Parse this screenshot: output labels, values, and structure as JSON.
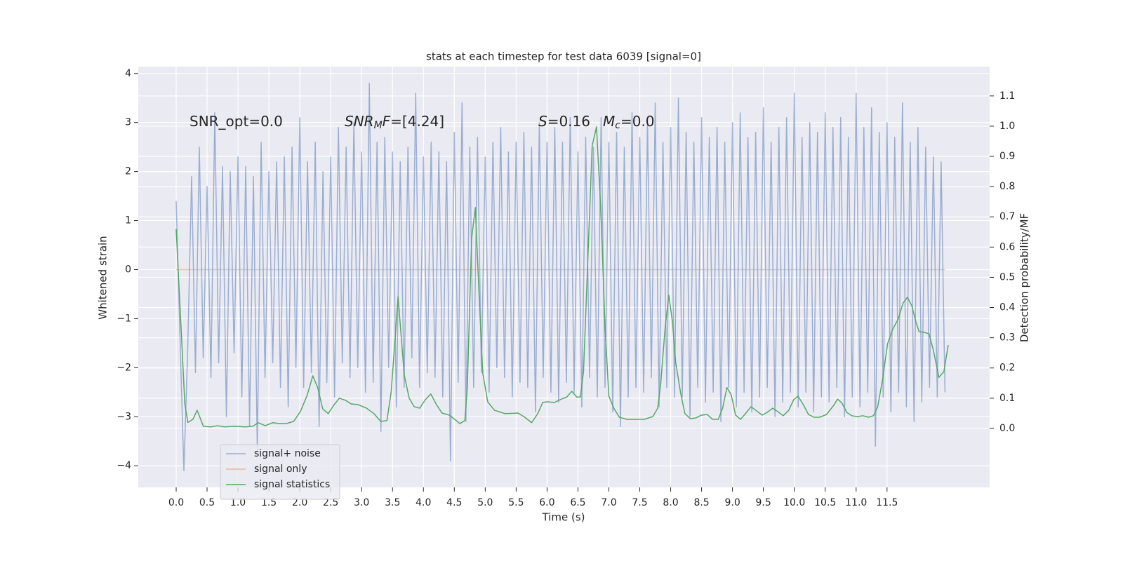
{
  "chart_data": {
    "type": "line",
    "title": "stats at each timestep for test data 6039 [signal=0]",
    "xlabel": "Time (s)",
    "ylabel": "Whitened strain",
    "y2label": "Detection probability/MF",
    "xlim": [
      -0.613,
      13.16
    ],
    "ylim": [
      -4.44,
      4.14
    ],
    "y2lim": [
      -0.195,
      1.197
    ],
    "xticks": [
      {
        "value": 0,
        "label": "0.0"
      },
      0.5,
      {
        "value": 1,
        "label": "1.0"
      },
      1.5,
      {
        "value": 2,
        "label": "2.0"
      },
      2.5,
      {
        "value": 3,
        "label": "3.0"
      },
      3.5,
      {
        "value": 4,
        "label": "4.0"
      },
      4.5,
      {
        "value": 5,
        "label": "5.0"
      },
      5.5,
      {
        "value": 6,
        "label": "6.0"
      },
      6.5,
      {
        "value": 7,
        "label": "7.0"
      },
      7.5,
      {
        "value": 8,
        "label": "8.0"
      },
      8.5,
      {
        "value": 9,
        "label": "9.0"
      },
      9.5,
      {
        "value": 10,
        "label": "10.0"
      },
      10.5,
      {
        "value": 11,
        "label": "11.0"
      },
      11.5
    ],
    "yticks": [
      {
        "value": -4,
        "label": "−4"
      },
      {
        "value": -3,
        "label": "−3"
      },
      {
        "value": -2,
        "label": "−2"
      },
      {
        "value": -1,
        "label": "−1"
      },
      0,
      1,
      2,
      3,
      4
    ],
    "y2ticks": [
      {
        "value": 0,
        "label": "0.0"
      },
      0.1,
      0.2,
      0.3,
      0.4,
      0.5,
      0.6,
      0.7,
      0.8,
      0.9,
      {
        "value": 1,
        "label": "1.0"
      },
      1.1
    ],
    "grid": true,
    "legend": "lower left",
    "annotations": [
      {
        "parts": [
          {
            "text": "SNR_opt=0.0"
          }
        ]
      },
      {
        "parts": [
          {
            "text": "SNR",
            "style": "italic"
          },
          {
            "text": "M",
            "style": "sub"
          },
          {
            "text": "F",
            "style": "italic"
          },
          {
            "text": "=[4.24]"
          }
        ]
      },
      {
        "parts": [
          {
            "text": "S",
            "style": "italic"
          },
          {
            "text": "=0.16"
          }
        ]
      },
      {
        "parts": [
          {
            "text": "M",
            "style": "italic"
          },
          {
            "text": "c",
            "style": "sub"
          },
          {
            "text": "=0.0"
          }
        ]
      }
    ],
    "series": [
      {
        "name": "signal+ noise",
        "color": "#4c72b0",
        "opacity": 0.5,
        "x": [
          0,
          0.0625,
          0.125,
          0.1875,
          0.25,
          0.3125,
          0.375,
          0.4375,
          0.5,
          0.5625,
          0.625,
          0.6875,
          0.75,
          0.8125,
          0.875,
          0.9375,
          1,
          1.0625,
          1.125,
          1.1875,
          1.25,
          1.3125,
          1.375,
          1.4375,
          1.5,
          1.5625,
          1.625,
          1.6875,
          1.75,
          1.8125,
          1.875,
          1.9375,
          2,
          2.0625,
          2.125,
          2.1875,
          2.25,
          2.3125,
          2.375,
          2.4375,
          2.5,
          2.5625,
          2.625,
          2.6875,
          2.75,
          2.8125,
          2.875,
          2.9375,
          3,
          3.0625,
          3.125,
          3.1875,
          3.25,
          3.3125,
          3.375,
          3.4375,
          3.5,
          3.5625,
          3.625,
          3.6875,
          3.75,
          3.8125,
          3.875,
          3.9375,
          4,
          4.0625,
          4.125,
          4.1875,
          4.25,
          4.3125,
          4.375,
          4.4375,
          4.5,
          4.5625,
          4.625,
          4.6875,
          4.75,
          4.8125,
          4.875,
          4.9375,
          5,
          5.0625,
          5.125,
          5.1875,
          5.25,
          5.3125,
          5.375,
          5.4375,
          5.5,
          5.5625,
          5.625,
          5.6875,
          5.75,
          5.8125,
          5.875,
          5.9375,
          6,
          6.0625,
          6.125,
          6.1875,
          6.25,
          6.3125,
          6.375,
          6.4375,
          6.5,
          6.5625,
          6.625,
          6.6875,
          6.75,
          6.8125,
          6.875,
          6.9375,
          7,
          7.0625,
          7.125,
          7.1875,
          7.25,
          7.3125,
          7.375,
          7.4375,
          7.5,
          7.5625,
          7.625,
          7.6875,
          7.75,
          7.8125,
          7.875,
          7.9375,
          8,
          8.0625,
          8.125,
          8.1875,
          8.25,
          8.3125,
          8.375,
          8.4375,
          8.5,
          8.5625,
          8.625,
          8.6875,
          8.75,
          8.8125,
          8.875,
          8.9375,
          9,
          9.0625,
          9.125,
          9.1875,
          9.25,
          9.3125,
          9.375,
          9.4375,
          9.5,
          9.5625,
          9.625,
          9.6875,
          9.75,
          9.8125,
          9.875,
          9.9375,
          10,
          10.0625,
          10.125,
          10.1875,
          10.25,
          10.3125,
          10.375,
          10.4375,
          10.5,
          10.5625,
          10.625,
          10.6875,
          10.75,
          10.8125,
          10.875,
          10.9375,
          11,
          11.0625,
          11.125,
          11.1875,
          11.25,
          11.3125,
          11.375,
          11.4375,
          11.5,
          11.5625,
          11.625,
          11.6875,
          11.75,
          11.8125,
          11.875,
          11.9375,
          12,
          12.0625,
          12.125,
          12.1875,
          12.25,
          12.3125,
          12.375,
          12.4375
        ],
        "values": [
          1.4,
          -1.4,
          -4.1,
          -1.6,
          1.9,
          -2.1,
          2.5,
          -1.8,
          1.7,
          -2.2,
          3.2,
          -1.9,
          2.1,
          -3.0,
          2.0,
          -1.7,
          2.3,
          -2.6,
          2.1,
          -3.2,
          1.9,
          -3.7,
          2.6,
          -2.2,
          2.0,
          -1.9,
          2.2,
          -2.4,
          2.3,
          -2.8,
          2.5,
          -2.0,
          3.1,
          -2.4,
          2.2,
          -2.1,
          2.6,
          -3.2,
          2.0,
          -2.3,
          2.3,
          -2.6,
          2.9,
          -1.9,
          2.5,
          -2.2,
          3.0,
          -2.0,
          2.4,
          -2.5,
          3.8,
          -2.3,
          2.6,
          -3.3,
          2.7,
          -2.0,
          2.4,
          -2.8,
          2.2,
          -2.4,
          2.5,
          -1.8,
          3.6,
          -2.4,
          2.3,
          -2.1,
          2.6,
          -2.2,
          2.4,
          -2.6,
          2.2,
          -3.9,
          2.8,
          -2.3,
          3.4,
          -3.1,
          2.5,
          -2.4,
          2.7,
          -2.1,
          2.3,
          -2.5,
          2.6,
          -2.0,
          2.9,
          -2.2,
          2.4,
          -2.6,
          2.6,
          -2.3,
          2.8,
          -2.4,
          2.5,
          -2.9,
          3.0,
          -2.2,
          2.6,
          -2.5,
          2.9,
          -2.7,
          2.6,
          -2.3,
          3.1,
          -2.5,
          2.4,
          -2.8,
          2.7,
          -2.2,
          2.5,
          -2.6,
          3.1,
          -2.4,
          2.6,
          -2.9,
          2.8,
          -3.2,
          2.5,
          -2.6,
          3.2,
          -2.4,
          2.7,
          -2.5,
          3.0,
          -2.2,
          3.4,
          -2.8,
          2.6,
          -2.4,
          2.9,
          -2.6,
          3.5,
          -2.6,
          2.8,
          -3.0,
          2.6,
          -2.4,
          3.1,
          -2.7,
          2.7,
          -2.5,
          2.9,
          -3.1,
          2.6,
          -2.4,
          3.0,
          -2.8,
          3.2,
          -2.5,
          2.7,
          -2.9,
          2.8,
          -2.6,
          3.3,
          -2.4,
          2.6,
          -3.0,
          2.9,
          -2.7,
          3.1,
          -2.5,
          3.6,
          -2.8,
          2.7,
          -2.5,
          3.0,
          -2.9,
          2.8,
          -2.6,
          3.2,
          -2.7,
          2.9,
          -2.4,
          3.1,
          -3.0,
          2.7,
          -2.6,
          3.6,
          -2.8,
          2.9,
          -2.5,
          3.3,
          -3.6,
          2.8,
          -2.6,
          3.0,
          -2.9,
          2.7,
          -2.5,
          3.4,
          -2.8,
          2.6,
          -3.1,
          2.9,
          -2.7,
          2.5,
          -2.4,
          2.3,
          -2.6,
          2.2,
          -2.5
        ]
      },
      {
        "name": "signal only",
        "color": "#dd8452",
        "opacity": 0.5,
        "x": [
          0,
          12.4375
        ],
        "values": [
          0,
          0
        ]
      },
      {
        "name": "signal statistics",
        "color": "#55a868",
        "opacity": 1,
        "axis": "y2",
        "x": [
          0,
          0.08,
          0.14,
          0.19,
          0.27,
          0.34,
          0.44,
          0.56,
          0.67,
          0.78,
          0.95,
          1.12,
          1.24,
          1.33,
          1.44,
          1.56,
          1.67,
          1.78,
          1.9,
          2.01,
          2.12,
          2.21,
          2.29,
          2.37,
          2.46,
          2.55,
          2.64,
          2.74,
          2.83,
          2.94,
          3.08,
          3.2,
          3.31,
          3.41,
          3.48,
          3.59,
          3.69,
          3.77,
          3.85,
          3.94,
          4.03,
          4.12,
          4.21,
          4.3,
          4.42,
          4.53,
          4.59,
          4.67,
          4.71,
          4.78,
          4.84,
          4.9,
          4.96,
          5.04,
          5.15,
          5.32,
          5.53,
          5.64,
          5.75,
          5.85,
          5.93,
          6,
          6.12,
          6.23,
          6.32,
          6.4,
          6.48,
          6.54,
          6.59,
          6.66,
          6.73,
          6.8,
          6.87,
          6.94,
          7,
          7.08,
          7.17,
          7.29,
          7.42,
          7.57,
          7.71,
          7.79,
          7.84,
          7.91,
          7.97,
          8.03,
          8.08,
          8.16,
          8.23,
          8.32,
          8.41,
          8.5,
          8.59,
          8.68,
          8.77,
          8.84,
          8.91,
          8.98,
          9.05,
          9.13,
          9.21,
          9.3,
          9.39,
          9.48,
          9.56,
          9.65,
          9.73,
          9.82,
          9.91,
          9.99,
          10.06,
          10.15,
          10.23,
          10.32,
          10.41,
          10.52,
          10.64,
          10.7,
          10.77,
          10.85,
          10.93,
          11.02,
          11.11,
          11.2,
          11.28,
          11.35,
          11.43,
          11.51,
          11.59,
          11.68,
          11.76,
          11.83,
          11.9,
          11.97,
          12.02,
          12.1,
          12.18,
          12.25,
          12.34,
          12.42,
          12.49
        ],
        "values": [
          0.66,
          0.33,
          0.08,
          0.02,
          0.03,
          0.06,
          0.007,
          0.005,
          0.009,
          0.005,
          0.007,
          0.005,
          0.007,
          0.019,
          0.009,
          0.019,
          0.016,
          0.016,
          0.023,
          0.056,
          0.11,
          0.174,
          0.135,
          0.065,
          0.049,
          0.077,
          0.1,
          0.093,
          0.081,
          0.079,
          0.067,
          0.049,
          0.023,
          0.026,
          0.123,
          0.436,
          0.176,
          0.1,
          0.072,
          0.067,
          0.095,
          0.114,
          0.079,
          0.051,
          0.044,
          0.026,
          0.016,
          0.026,
          0.135,
          0.629,
          0.731,
          0.443,
          0.183,
          0.088,
          0.06,
          0.049,
          0.051,
          0.037,
          0.019,
          0.049,
          0.086,
          0.088,
          0.086,
          0.097,
          0.104,
          0.123,
          0.104,
          0.104,
          0.188,
          0.559,
          0.935,
          0.998,
          0.722,
          0.327,
          0.107,
          0.067,
          0.037,
          0.03,
          0.03,
          0.03,
          0.039,
          0.067,
          0.151,
          0.332,
          0.441,
          0.35,
          0.22,
          0.118,
          0.049,
          0.032,
          0.035,
          0.044,
          0.046,
          0.03,
          0.03,
          0.067,
          0.135,
          0.111,
          0.044,
          0.03,
          0.049,
          0.072,
          0.058,
          0.044,
          0.053,
          0.067,
          0.056,
          0.042,
          0.06,
          0.095,
          0.107,
          0.077,
          0.046,
          0.037,
          0.037,
          0.046,
          0.077,
          0.097,
          0.084,
          0.053,
          0.042,
          0.039,
          0.042,
          0.037,
          0.042,
          0.072,
          0.165,
          0.281,
          0.327,
          0.362,
          0.415,
          0.434,
          0.406,
          0.35,
          0.32,
          0.318,
          0.313,
          0.258,
          0.169,
          0.188,
          0.276
        ]
      }
    ]
  }
}
